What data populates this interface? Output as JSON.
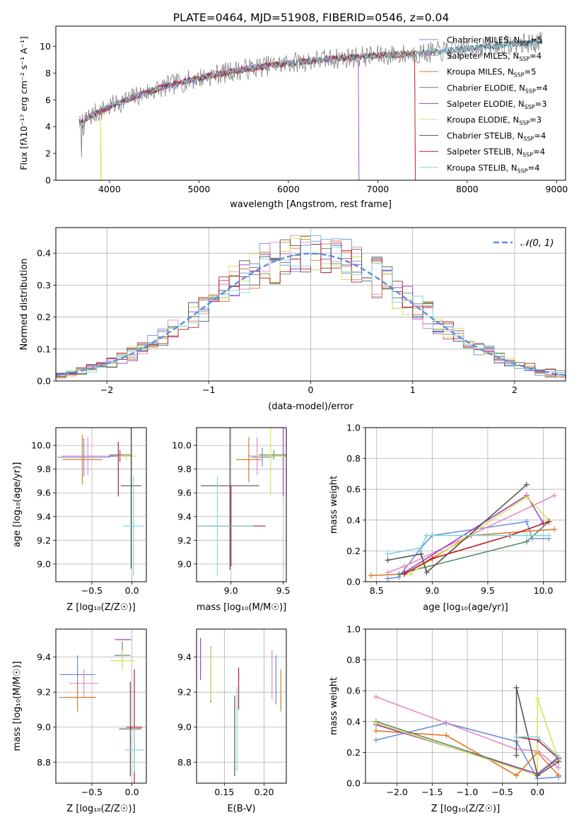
{
  "figure": {
    "title": "PLATE=0464, MJD=51908, FIBERID=0546, z=0.04"
  },
  "legend_entries": [
    {
      "imf": "Chabrier",
      "lib": "MILES",
      "n": "5",
      "color": "#6a8fdc"
    },
    {
      "imf": "Salpeter",
      "lib": "MILES",
      "n": "4",
      "color": "#e68ac2"
    },
    {
      "imf": "Kroupa",
      "lib": "MILES",
      "n": "5",
      "color": "#e07a2a"
    },
    {
      "imf": "Chabrier",
      "lib": "ELODIE",
      "n": "4",
      "color": "#5b8a6a"
    },
    {
      "imf": "Salpeter",
      "lib": "ELODIE",
      "n": "3",
      "color": "#a23fc0"
    },
    {
      "imf": "Kroupa",
      "lib": "ELODIE",
      "n": "3",
      "color": "#d6e35a"
    },
    {
      "imf": "Chabrier",
      "lib": "STELIB",
      "n": "4",
      "color": "#555555"
    },
    {
      "imf": "Salpeter",
      "lib": "STELIB",
      "n": "4",
      "color": "#b5202a"
    },
    {
      "imf": "Kroupa",
      "lib": "STELIB",
      "n": "4",
      "color": "#7fd6dc"
    }
  ],
  "chart_data": [
    {
      "id": "spectrum",
      "type": "line",
      "xlabel": "wavelength [Angstrom, rest frame]",
      "ylabel": "Flux [f",
      "xlim": [
        3400,
        9100
      ],
      "ylim": [
        0,
        11.5
      ],
      "x_ticks": [
        4000,
        5000,
        6000,
        7000,
        8000,
        9000
      ],
      "y_ticks": [
        0,
        2,
        4,
        6,
        8,
        10
      ],
      "observed_color": "#808080",
      "model_end_wavelengths": [
        8850,
        8850,
        7420,
        8850,
        6790,
        3910,
        8850,
        7420,
        8850
      ],
      "grid": false,
      "legend": "upper right"
    },
    {
      "id": "residual_histogram",
      "type": "bar",
      "xlabel": "(data-model)/error",
      "ylabel": "Normed distribution",
      "xlim": [
        -2.5,
        2.5
      ],
      "ylim": [
        0,
        0.48
      ],
      "x_ticks": [
        -2,
        -1,
        0,
        1,
        2
      ],
      "y_ticks": [
        0.0,
        0.1,
        0.2,
        0.3,
        0.4
      ],
      "gaussian_label": "N(0,1)",
      "gaussian_color": "#5b8fdc",
      "grid": true,
      "legend": "upper right"
    },
    {
      "id": "age_vs_Z",
      "type": "scatter",
      "xlabel": "Z [log10(Z/Z☉)]",
      "ylabel": "age [log10(age/yr)]",
      "xlim": [
        -0.95,
        0.18
      ],
      "ylim": [
        8.85,
        10.15
      ],
      "x_ticks": [
        -0.5,
        0.0
      ],
      "y_ticks": [
        9.0,
        9.2,
        9.4,
        9.6,
        9.8,
        10.0
      ],
      "grid": true,
      "points": [
        {
          "s": 0,
          "x": -0.6,
          "y": 9.9,
          "xerr": 0.33,
          "yerr": 0.16
        },
        {
          "s": 1,
          "x": -0.55,
          "y": 9.91,
          "xerr": 0.33,
          "yerr": 0.16
        },
        {
          "s": 2,
          "x": -0.62,
          "y": 9.88,
          "xerr": 0.25,
          "yerr": 0.21
        },
        {
          "s": 3,
          "x": -0.15,
          "y": 9.92,
          "xerr": 0.13,
          "yerr": 0.04
        },
        {
          "s": 4,
          "x": -0.15,
          "y": 9.91,
          "xerr": 0.14,
          "yerr": 0.05
        },
        {
          "s": 5,
          "x": -0.07,
          "y": 9.91,
          "xerr": 0.12,
          "yerr": 0.03
        },
        {
          "s": 6,
          "x": -0.01,
          "y": 9.66,
          "xerr": 0.13,
          "yerr": 0.7
        },
        {
          "s": 7,
          "x": -0.17,
          "y": 9.8,
          "xerr": 0.0,
          "yerr": 0.23
        },
        {
          "s": 8,
          "x": 0.02,
          "y": 9.32,
          "xerr": 0.13,
          "yerr": 0.42
        }
      ]
    },
    {
      "id": "age_vs_mass",
      "type": "scatter",
      "xlabel": "mass [log10(M/M☉)]",
      "ylabel": "",
      "xlim": [
        8.67,
        9.53
      ],
      "ylim": [
        8.85,
        10.15
      ],
      "x_ticks": [
        9.0,
        9.5
      ],
      "y_ticks": [
        9.0,
        9.2,
        9.4,
        9.6,
        9.8,
        10.0
      ],
      "grid": true,
      "points": [
        {
          "s": 0,
          "x": 9.3,
          "y": 9.9,
          "xerr": 0.1,
          "yerr": 0.08
        },
        {
          "s": 1,
          "x": 9.25,
          "y": 9.91,
          "xerr": 0.08,
          "yerr": 0.16
        },
        {
          "s": 2,
          "x": 9.17,
          "y": 9.88,
          "xerr": 0.12,
          "yerr": 0.19
        },
        {
          "s": 3,
          "x": 9.41,
          "y": 9.92,
          "xerr": 0.14,
          "yerr": 0.04
        },
        {
          "s": 4,
          "x": 9.5,
          "y": 9.91,
          "xerr": 0.1,
          "yerr": 0.34
        },
        {
          "s": 5,
          "x": 9.38,
          "y": 9.91,
          "xerr": 0.14,
          "yerr": 0.33
        },
        {
          "s": 6,
          "x": 8.99,
          "y": 9.66,
          "xerr": 0.28,
          "yerr": 0.71
        },
        {
          "s": 7,
          "x": 9.0,
          "y": 9.32,
          "xerr": 0.33,
          "yerr": 0.34
        },
        {
          "s": 8,
          "x": 8.87,
          "y": 9.32,
          "xerr": 0.35,
          "yerr": 0.42
        }
      ]
    },
    {
      "id": "weight_vs_age",
      "type": "line",
      "xlabel": "age [log10(age/yr)]",
      "ylabel": "mass weight",
      "xlim": [
        8.4,
        10.2
      ],
      "ylim": [
        0.0,
        1.0
      ],
      "x_ticks": [
        8.5,
        9.0,
        9.5,
        10.0
      ],
      "y_ticks": [
        0.0,
        0.2,
        0.4,
        0.6,
        0.8,
        1.0
      ],
      "grid": true,
      "series": [
        {
          "s": 0,
          "x": [
            8.6,
            8.7,
            8.9,
            9.0,
            9.85,
            9.9,
            10.05
          ],
          "y": [
            0.02,
            0.03,
            0.22,
            0.3,
            0.39,
            0.28,
            0.28
          ]
        },
        {
          "s": 1,
          "x": [
            8.6,
            8.75,
            10.1
          ],
          "y": [
            0.06,
            0.1,
            0.56
          ]
        },
        {
          "s": 2,
          "x": [
            8.45,
            8.75,
            9.35,
            10.1
          ],
          "y": [
            0.04,
            0.05,
            0.3,
            0.34
          ]
        },
        {
          "s": 3,
          "x": [
            8.7,
            8.75,
            9.85,
            10.05
          ],
          "y": [
            0.05,
            0.06,
            0.26,
            0.39
          ]
        },
        {
          "s": 4,
          "x": [
            8.75,
            9.85,
            10.0
          ],
          "y": [
            0.06,
            0.56,
            0.38
          ]
        },
        {
          "s": 5,
          "x": [
            8.8,
            9.85,
            10.05
          ],
          "y": [
            0.05,
            0.55,
            0.4
          ]
        },
        {
          "s": 6,
          "x": [
            8.6,
            8.9,
            8.95,
            9.85
          ],
          "y": [
            0.14,
            0.18,
            0.06,
            0.63
          ]
        },
        {
          "s": 7,
          "x": [
            8.75,
            9.0,
            9.7,
            10.05
          ],
          "y": [
            0.05,
            0.15,
            0.3,
            0.39
          ]
        },
        {
          "s": 8,
          "x": [
            8.6,
            8.9,
            8.95,
            9.85,
            10.05
          ],
          "y": [
            0.18,
            0.22,
            0.3,
            0.3,
            0.3
          ]
        }
      ]
    },
    {
      "id": "mass_vs_Z",
      "type": "scatter",
      "xlabel": "Z [log10(Z/Z☉)]",
      "ylabel": "mass [log10(M/M☉)]",
      "xlim": [
        -0.95,
        0.18
      ],
      "ylim": [
        8.68,
        9.56
      ],
      "x_ticks": [
        -0.5,
        0.0
      ],
      "y_ticks": [
        8.8,
        9.0,
        9.2,
        9.4
      ],
      "grid": true,
      "points": [
        {
          "s": 0,
          "x": -0.68,
          "y": 9.3,
          "xerr": 0.22,
          "yerr": 0.11
        },
        {
          "s": 1,
          "x": -0.6,
          "y": 9.25,
          "xerr": 0.18,
          "yerr": 0.08
        },
        {
          "s": 2,
          "x": -0.68,
          "y": 9.17,
          "xerr": 0.23,
          "yerr": 0.08
        },
        {
          "s": 3,
          "x": -0.12,
          "y": 9.41,
          "xerr": 0.1,
          "yerr": 0.08
        },
        {
          "s": 4,
          "x": -0.11,
          "y": 9.5,
          "xerr": 0.1,
          "yerr": 0.0
        },
        {
          "s": 5,
          "x": -0.12,
          "y": 9.38,
          "xerr": 0.15,
          "yerr": 0.06
        },
        {
          "s": 6,
          "x": -0.02,
          "y": 8.99,
          "xerr": 0.14,
          "yerr": 0.27
        },
        {
          "s": 7,
          "x": 0.03,
          "y": 9.0,
          "xerr": 0.1,
          "yerr": 0.33
        },
        {
          "s": 8,
          "x": 0.03,
          "y": 8.87,
          "xerr": 0.12,
          "yerr": 0.13
        }
      ]
    },
    {
      "id": "mass_vs_EBV",
      "type": "scatter",
      "xlabel": "E(B-V)",
      "ylabel": "",
      "xlim": [
        0.115,
        0.228
      ],
      "ylim": [
        8.68,
        9.56
      ],
      "x_ticks": [
        0.15,
        0.2
      ],
      "y_ticks": [
        8.8,
        9.0,
        9.2,
        9.4
      ],
      "grid": true,
      "points": [
        {
          "s": 0,
          "x": 0.215,
          "y": 9.27,
          "xerr": 0,
          "yerr": 0.14
        },
        {
          "s": 1,
          "x": 0.21,
          "y": 9.3,
          "xerr": 0,
          "yerr": 0.14
        },
        {
          "s": 2,
          "x": 0.221,
          "y": 9.21,
          "xerr": 0,
          "yerr": 0.12
        },
        {
          "s": 3,
          "x": 0.133,
          "y": 9.3,
          "xerr": 0,
          "yerr": 0.16
        },
        {
          "s": 4,
          "x": 0.12,
          "y": 9.39,
          "xerr": 0,
          "yerr": 0.12
        },
        {
          "s": 5,
          "x": 0.133,
          "y": 9.3,
          "xerr": 0,
          "yerr": 0.15
        },
        {
          "s": 6,
          "x": 0.163,
          "y": 8.95,
          "xerr": 0,
          "yerr": 0.23
        },
        {
          "s": 7,
          "x": 0.168,
          "y": 9.22,
          "xerr": 0,
          "yerr": 0.12
        },
        {
          "s": 8,
          "x": 0.166,
          "y": 8.99,
          "xerr": 0,
          "yerr": 0.24
        }
      ]
    },
    {
      "id": "weight_vs_Z",
      "type": "line",
      "xlabel": "Z [log10(Z/Z☉)]",
      "ylabel": "mass weight",
      "xlim": [
        -2.45,
        0.4
      ],
      "ylim": [
        0.0,
        1.0
      ],
      "x_ticks": [
        -2.0,
        -1.5,
        -1.0,
        -0.5,
        0.0
      ],
      "y_ticks": [
        0.0,
        0.2,
        0.4,
        0.6,
        0.8,
        1.0
      ],
      "grid": true,
      "series": [
        {
          "s": 0,
          "x": [
            -2.3,
            -1.3,
            -0.3,
            0.0,
            0.3
          ],
          "y": [
            0.28,
            0.39,
            0.27,
            0.03,
            0.04
          ]
        },
        {
          "s": 1,
          "x": [
            -2.3,
            -0.3,
            0.0,
            0.3
          ],
          "y": [
            0.56,
            0.22,
            0.21,
            0.1
          ]
        },
        {
          "s": 2,
          "x": [
            -2.3,
            -1.3,
            -0.3,
            0.0,
            0.3
          ],
          "y": [
            0.34,
            0.31,
            0.05,
            0.2,
            0.05
          ]
        },
        {
          "s": 3,
          "x": [
            -2.3,
            0.0,
            0.3
          ],
          "y": [
            0.4,
            0.06,
            0.17
          ]
        },
        {
          "s": 4,
          "x": [
            -2.3,
            0.0,
            0.3
          ],
          "y": [
            0.38,
            0.06,
            0.16
          ]
        },
        {
          "s": 5,
          "x": [
            -2.3,
            0.0,
            0.0,
            0.3
          ],
          "y": [
            0.39,
            0.05,
            0.55,
            0.15
          ]
        },
        {
          "s": 6,
          "x": [
            -0.3,
            -0.3,
            0.0,
            0.3
          ],
          "y": [
            0.18,
            0.62,
            0.05,
            0.14
          ]
        },
        {
          "s": 7,
          "x": [
            -0.3,
            0.0,
            0.3
          ],
          "y": [
            0.3,
            0.28,
            0.16
          ]
        },
        {
          "s": 8,
          "x": [
            -0.3,
            0.0,
            0.3
          ],
          "y": [
            0.3,
            0.3,
            0.17
          ]
        }
      ]
    }
  ]
}
